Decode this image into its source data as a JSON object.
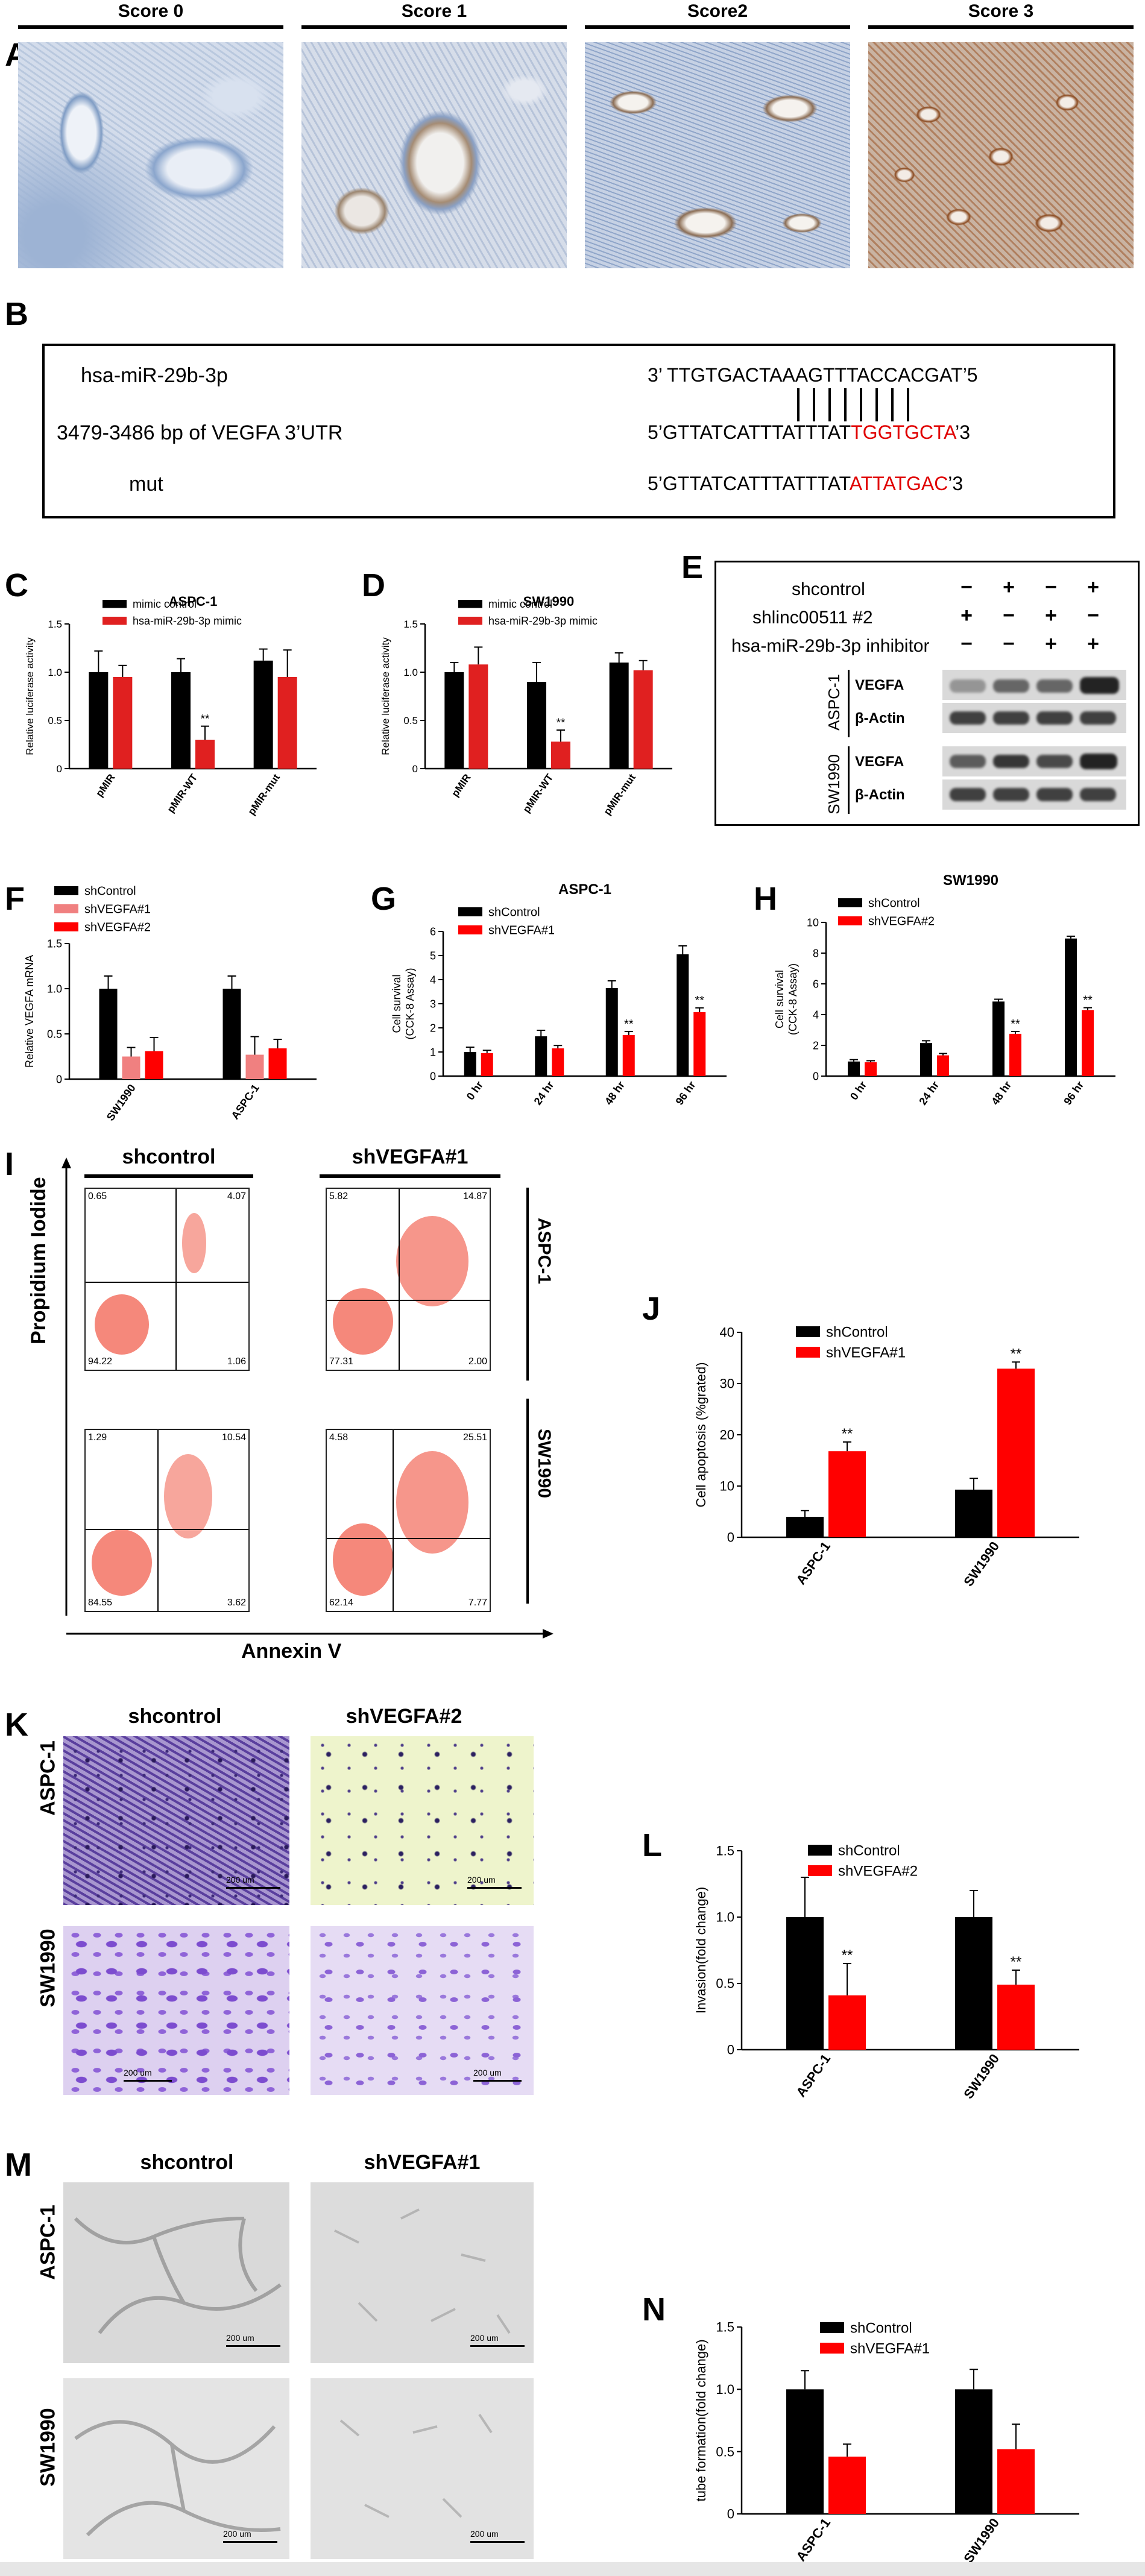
{
  "panels": {
    "A": "A",
    "B": "B",
    "C": "C",
    "D": "D",
    "E": "E",
    "F": "F",
    "G": "G",
    "H": "H",
    "I": "I",
    "J": "J",
    "K": "K",
    "L": "L",
    "M": "M",
    "N": "N"
  },
  "panelA": {
    "headers": [
      "Score 0",
      "Score 1",
      "Score2",
      "Score 3"
    ]
  },
  "panelB": {
    "row1_label": "hsa-miR-29b-3p",
    "row1_seq": "3’ TTGTGACTAAAGTTTACCACGAT’5",
    "row2_label": "3479-3486 bp of VEGFA 3’UTR",
    "row2_seq_black": "5’GTTATCATTTATTTAT",
    "row2_seq_red": "TGGTGCTA",
    "row2_seq_end": "’3",
    "row3_label": "mut",
    "row3_seq_black": "5’GTTATCATTTATTTAT",
    "row3_seq_red": "ATTATGAC",
    "row3_seq_end": "’3"
  },
  "panelE": {
    "rows": [
      "shcontrol",
      "shlinc00511 #2",
      "hsa-miR-29b-3p inhibitor"
    ],
    "signs": [
      [
        "−",
        "+",
        "−",
        "+"
      ],
      [
        "+",
        "−",
        "+",
        "−"
      ],
      [
        "−",
        "−",
        "+",
        "+"
      ]
    ],
    "cells": [
      "ASPC-1",
      "SW1990"
    ],
    "bands": [
      "VEGFA",
      "β-Actin"
    ]
  },
  "panelI": {
    "headers": [
      "shcontrol",
      "shVEGFA#1"
    ],
    "rows": [
      "ASPC-1",
      "SW1990"
    ],
    "ylabel": "Propidium Iodide",
    "xlabel": "Annexin V",
    "quadrants": [
      [
        "0.65",
        "4.07",
        "94.22",
        "1.06"
      ],
      [
        "5.82",
        "14.87",
        "77.31",
        "2.00"
      ],
      [
        "1.29",
        "10.54",
        "84.55",
        "3.62"
      ],
      [
        "4.58",
        "25.51",
        "62.14",
        "7.77"
      ]
    ]
  },
  "panelK": {
    "headers": [
      "shcontrol",
      "shVEGFA#2"
    ],
    "rows": [
      "ASPC-1",
      "SW1990"
    ],
    "scale": "200 um"
  },
  "panelM": {
    "headers": [
      "shcontrol",
      "shVEGFA#1"
    ],
    "rows": [
      "ASPC-1",
      "SW1990"
    ],
    "scale": "200 um"
  },
  "chart_data": [
    {
      "id": "C",
      "type": "bar",
      "title": "ASPC-1",
      "categories": [
        "pMIR",
        "pMIR-WT",
        "pMIR-mut"
      ],
      "ylabel": "Relative luciferase activity",
      "ylim": [
        0,
        1.5
      ],
      "yticks": [
        0,
        0.5,
        1.0,
        1.5
      ],
      "series": [
        {
          "name": "mimic control",
          "color": "#000000",
          "values": [
            1.0,
            1.0,
            1.12
          ],
          "errors": [
            0.22,
            0.14,
            0.12
          ]
        },
        {
          "name": "hsa-miR-29b-3p mimic",
          "color": "#e02020",
          "values": [
            0.95,
            0.3,
            0.95
          ],
          "errors": [
            0.12,
            0.14,
            0.28
          ]
        }
      ],
      "annotations": [
        {
          "category": "pMIR-WT",
          "series": 1,
          "text": "**"
        }
      ]
    },
    {
      "id": "D",
      "type": "bar",
      "title": "SW1990",
      "categories": [
        "pMIR",
        "pMIR-WT",
        "pMIR-mut"
      ],
      "ylabel": "Relative luciferase activity",
      "ylim": [
        0,
        1.5
      ],
      "yticks": [
        0,
        0.5,
        1.0,
        1.5
      ],
      "series": [
        {
          "name": "mimic control",
          "color": "#000000",
          "values": [
            1.0,
            0.9,
            1.1
          ],
          "errors": [
            0.1,
            0.2,
            0.1
          ]
        },
        {
          "name": "hsa-miR-29b-3p mimic",
          "color": "#e02020",
          "values": [
            1.08,
            0.28,
            1.02
          ],
          "errors": [
            0.18,
            0.12,
            0.1
          ]
        }
      ],
      "annotations": [
        {
          "category": "pMIR-WT",
          "series": 1,
          "text": "**"
        }
      ]
    },
    {
      "id": "F",
      "type": "bar",
      "title": "",
      "categories": [
        "SW1990",
        "ASPC-1"
      ],
      "ylabel": "Relative VEGFA mRNA",
      "ylim": [
        0,
        1.5
      ],
      "yticks": [
        0,
        0.5,
        1.0,
        1.5
      ],
      "series": [
        {
          "name": "shControl",
          "color": "#000000",
          "values": [
            1.0,
            1.0
          ],
          "errors": [
            0.14,
            0.14
          ]
        },
        {
          "name": "shVEGFA#1",
          "color": "#f08080",
          "values": [
            0.25,
            0.27
          ],
          "errors": [
            0.1,
            0.2
          ]
        },
        {
          "name": "shVEGFA#2",
          "color": "#ff0000",
          "values": [
            0.31,
            0.34
          ],
          "errors": [
            0.15,
            0.1
          ]
        }
      ],
      "annotations": []
    },
    {
      "id": "G",
      "type": "bar",
      "title": "ASPC-1",
      "categories": [
        "0 hr",
        "24 hr",
        "48 hr",
        "96 hr"
      ],
      "ylabel": "Cell survival (CCK-8 Assay)",
      "ylim": [
        0,
        6
      ],
      "yticks": [
        0,
        1,
        2,
        3,
        4,
        5,
        6
      ],
      "series": [
        {
          "name": "shControl",
          "color": "#000000",
          "values": [
            1.0,
            1.65,
            3.65,
            5.05
          ],
          "errors": [
            0.2,
            0.25,
            0.3,
            0.35
          ]
        },
        {
          "name": "shVEGFA#1",
          "color": "#ff0000",
          "values": [
            0.95,
            1.15,
            1.7,
            2.65
          ],
          "errors": [
            0.12,
            0.12,
            0.15,
            0.18
          ]
        }
      ],
      "annotations": [
        {
          "category": "48 hr",
          "series": 1,
          "text": "**"
        },
        {
          "category": "96 hr",
          "series": 1,
          "text": "**"
        }
      ]
    },
    {
      "id": "H",
      "type": "bar",
      "title": "SW1990",
      "categories": [
        "0 hr",
        "24 hr",
        "48 hr",
        "96 hr"
      ],
      "ylabel": "Cell survival (CCK-8 Assay)",
      "ylim": [
        0,
        10
      ],
      "yticks": [
        0,
        2,
        4,
        6,
        8,
        10
      ],
      "series": [
        {
          "name": "shControl",
          "color": "#000000",
          "values": [
            0.95,
            2.15,
            4.85,
            8.95
          ],
          "errors": [
            0.12,
            0.15,
            0.15,
            0.15
          ]
        },
        {
          "name": "shVEGFA#2",
          "color": "#ff0000",
          "values": [
            0.9,
            1.35,
            2.75,
            4.3
          ],
          "errors": [
            0.1,
            0.12,
            0.15,
            0.15
          ]
        }
      ],
      "annotations": [
        {
          "category": "48 hr",
          "series": 1,
          "text": "**"
        },
        {
          "category": "96 hr",
          "series": 1,
          "text": "**"
        }
      ]
    },
    {
      "id": "J",
      "type": "bar",
      "title": "",
      "categories": [
        "ASPC-1",
        "SW1990"
      ],
      "ylabel": "Cell apoptosis (%grated)",
      "ylim": [
        0,
        40
      ],
      "yticks": [
        0,
        10,
        20,
        30,
        40
      ],
      "series": [
        {
          "name": "shControl",
          "color": "#000000",
          "values": [
            4.0,
            9.3
          ],
          "errors": [
            1.2,
            2.2
          ]
        },
        {
          "name": "shVEGFA#1",
          "color": "#ff0000",
          "values": [
            16.8,
            32.9
          ],
          "errors": [
            1.8,
            1.3
          ]
        }
      ],
      "annotations": [
        {
          "category": "ASPC-1",
          "series": 1,
          "text": "**"
        },
        {
          "category": "SW1990",
          "series": 1,
          "text": "**"
        }
      ]
    },
    {
      "id": "L",
      "type": "bar",
      "title": "",
      "categories": [
        "ASPC-1",
        "SW1990"
      ],
      "ylabel": "Invasion(fold change)",
      "ylim": [
        0,
        1.5
      ],
      "yticks": [
        0,
        0.5,
        1.0,
        1.5
      ],
      "series": [
        {
          "name": "shControl",
          "color": "#000000",
          "values": [
            1.0,
            1.0
          ],
          "errors": [
            0.3,
            0.2
          ]
        },
        {
          "name": "shVEGFA#2",
          "color": "#ff0000",
          "values": [
            0.41,
            0.49
          ],
          "errors": [
            0.24,
            0.11
          ]
        }
      ],
      "annotations": [
        {
          "category": "ASPC-1",
          "series": 1,
          "text": "**"
        },
        {
          "category": "SW1990",
          "series": 1,
          "text": "**"
        }
      ]
    },
    {
      "id": "N",
      "type": "bar",
      "title": "",
      "categories": [
        "ASPC-1",
        "SW1990"
      ],
      "ylabel": "tube formation(fold change)",
      "ylim": [
        0,
        1.5
      ],
      "yticks": [
        0,
        0.5,
        1.0,
        1.5
      ],
      "series": [
        {
          "name": "shControl",
          "color": "#000000",
          "values": [
            1.0,
            1.0
          ],
          "errors": [
            0.15,
            0.16
          ]
        },
        {
          "name": "shVEGFA#1",
          "color": "#ff0000",
          "values": [
            0.46,
            0.52
          ],
          "errors": [
            0.1,
            0.2
          ]
        }
      ],
      "annotations": []
    }
  ]
}
